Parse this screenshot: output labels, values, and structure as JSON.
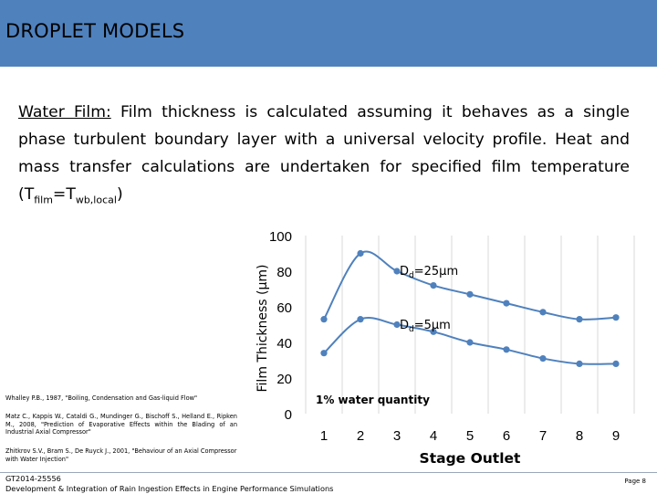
{
  "header": {
    "title": "DROPLET MODELS"
  },
  "body": {
    "lead": "Water Film:",
    "text": " Film thickness is calculated assuming it behaves as a single phase turbulent boundary layer with a universal velocity profile. Heat and mass transfer calculations are undertaken for specified film temperature (T",
    "sub1": "film",
    "mid": "=T",
    "sub2": "wb,local",
    "end": ")"
  },
  "references": [
    "Whalley P.B., 1987, \"Boiling, Condensation and Gas-liquid Flow\"",
    "Matz C., Kappis W., Cataldi G., Mundinger G., Bischoff S., Helland E., Ripken M., 2008, \"Prediction of Evaporative Effects within the Blading of an Industrial Axial Compressor\"",
    "Zhitkrov S.V., Bram S., De Ruyck J., 2001, \"Behaviour of an Axial Compressor with Water Injection\""
  ],
  "footer": {
    "code": "GT2014-25556",
    "title": "Development & Integration of Rain Ingestion Effects in Engine Performance Simulations",
    "page": "Page 8"
  },
  "chart_data": {
    "type": "line",
    "ylabel": "Film Thickness (μm)",
    "xlabel": "Stage Outlet",
    "ylim": [
      0,
      100
    ],
    "yticks": [
      0,
      20,
      40,
      60,
      80,
      100
    ],
    "x": [
      1,
      2,
      3,
      4,
      5,
      6,
      7,
      8,
      9
    ],
    "xticks": [
      1,
      2,
      3,
      4,
      5,
      6,
      7,
      8,
      9
    ],
    "grid": "vertical",
    "annotation": "1% water quantity",
    "series": [
      {
        "name": "D",
        "sub": "d",
        "suffix": "=25μm",
        "values": [
          53,
          90,
          80,
          72,
          67,
          62,
          57,
          53,
          54
        ]
      },
      {
        "name": "D",
        "sub": "d",
        "suffix": "=5μm",
        "values": [
          34,
          53,
          50,
          46,
          40,
          36,
          31,
          28,
          28
        ]
      }
    ],
    "colors": {
      "line": "#4f81bd",
      "grid": "#d9d9d9"
    }
  }
}
